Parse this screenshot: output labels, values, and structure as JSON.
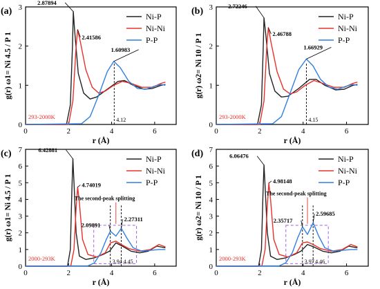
{
  "chart_data": [
    {
      "type": "line",
      "panel_label": "(a)",
      "ylabel": "g(r) ω1= Ni 4.5 / P 1",
      "xlabel": "r (Å)",
      "xlim": [
        0,
        7
      ],
      "ylim": [
        0,
        3
      ],
      "xticks": [
        "0",
        "2",
        "4",
        "6"
      ],
      "xtick_values": [
        0,
        2,
        4,
        6
      ],
      "yticks": [
        "0",
        "1",
        "2",
        "3"
      ],
      "ytick_values": [
        0,
        1,
        2,
        3
      ],
      "legend": "top-right",
      "temp_label": "293-2000K",
      "series": [
        {
          "name": "Ni-P",
          "color": "#222222",
          "points": [
            [
              0,
              0
            ],
            [
              1.9,
              0
            ],
            [
              2.08,
              0.5
            ],
            [
              2.18,
              2.0
            ],
            [
              2.22,
              2.88
            ],
            [
              2.28,
              2.4
            ],
            [
              2.45,
              1.3
            ],
            [
              2.7,
              0.8
            ],
            [
              3.0,
              0.65
            ],
            [
              3.3,
              0.7
            ],
            [
              3.8,
              0.9
            ],
            [
              4.3,
              1.1
            ],
            [
              4.6,
              1.12
            ],
            [
              5.0,
              1.0
            ],
            [
              5.5,
              0.9
            ],
            [
              5.9,
              0.92
            ],
            [
              6.3,
              1.0
            ],
            [
              6.5,
              1.02
            ]
          ]
        },
        {
          "name": "Ni-Ni",
          "color": "#e8302a",
          "points": [
            [
              0,
              0
            ],
            [
              2.0,
              0
            ],
            [
              2.2,
              0.6
            ],
            [
              2.35,
              2.0
            ],
            [
              2.42,
              2.42
            ],
            [
              2.55,
              2.1
            ],
            [
              2.8,
              1.4
            ],
            [
              3.1,
              0.95
            ],
            [
              3.4,
              0.8
            ],
            [
              3.7,
              0.85
            ],
            [
              4.1,
              1.0
            ],
            [
              4.5,
              1.1
            ],
            [
              4.9,
              1.05
            ],
            [
              5.4,
              0.95
            ],
            [
              5.9,
              0.95
            ],
            [
              6.3,
              1.05
            ],
            [
              6.5,
              1.08
            ]
          ]
        },
        {
          "name": "P-P",
          "color": "#2f7fe0",
          "points": [
            [
              0,
              0
            ],
            [
              2.6,
              0.02
            ],
            [
              3.0,
              0.2
            ],
            [
              3.4,
              0.75
            ],
            [
              3.8,
              1.35
            ],
            [
              4.1,
              1.61
            ],
            [
              4.4,
              1.45
            ],
            [
              4.8,
              1.1
            ],
            [
              5.2,
              0.92
            ],
            [
              5.6,
              0.9
            ],
            [
              6.0,
              0.98
            ],
            [
              6.3,
              1.02
            ],
            [
              6.5,
              1.0
            ]
          ]
        }
      ],
      "annotations": [
        {
          "text": "2.87894",
          "x": 2.22,
          "y": 2.88,
          "series": "Ni-P"
        },
        {
          "text": "2.41586",
          "x": 2.42,
          "y": 2.42,
          "series": "Ni-Ni"
        },
        {
          "text": "1.60983",
          "x": 4.1,
          "y": 1.61,
          "series": "P-P"
        }
      ],
      "markers": [
        {
          "x": 4.12,
          "label": "4.12"
        }
      ]
    },
    {
      "type": "line",
      "panel_label": "(b)",
      "ylabel": "g(r) ω2= Ni 10 / P 1",
      "xlabel": "r (Å)",
      "xlim": [
        0,
        7
      ],
      "ylim": [
        0,
        3
      ],
      "xticks": [
        "0",
        "2",
        "4",
        "6"
      ],
      "xtick_values": [
        0,
        2,
        4,
        6
      ],
      "yticks": [
        "0",
        "1",
        "2",
        "3"
      ],
      "ytick_values": [
        0,
        1,
        2,
        3
      ],
      "legend": "top-right",
      "temp_label": "293-2000K",
      "series": [
        {
          "name": "Ni-P",
          "color": "#222222",
          "points": [
            [
              0,
              0
            ],
            [
              1.9,
              0
            ],
            [
              2.08,
              0.5
            ],
            [
              2.16,
              1.9
            ],
            [
              2.2,
              2.72
            ],
            [
              2.28,
              2.3
            ],
            [
              2.45,
              1.3
            ],
            [
              2.7,
              0.85
            ],
            [
              3.0,
              0.7
            ],
            [
              3.3,
              0.72
            ],
            [
              3.8,
              0.92
            ],
            [
              4.3,
              1.15
            ],
            [
              4.6,
              1.15
            ],
            [
              5.0,
              1.0
            ],
            [
              5.5,
              0.88
            ],
            [
              5.9,
              0.9
            ],
            [
              6.3,
              1.0
            ],
            [
              6.5,
              1.02
            ]
          ]
        },
        {
          "name": "Ni-Ni",
          "color": "#e8302a",
          "points": [
            [
              0,
              0
            ],
            [
              2.0,
              0
            ],
            [
              2.2,
              0.6
            ],
            [
              2.33,
              2.0
            ],
            [
              2.4,
              2.47
            ],
            [
              2.52,
              2.1
            ],
            [
              2.8,
              1.35
            ],
            [
              3.1,
              0.9
            ],
            [
              3.4,
              0.78
            ],
            [
              3.7,
              0.83
            ],
            [
              4.1,
              1.0
            ],
            [
              4.5,
              1.12
            ],
            [
              4.9,
              1.05
            ],
            [
              5.4,
              0.95
            ],
            [
              5.9,
              0.95
            ],
            [
              6.3,
              1.05
            ],
            [
              6.5,
              1.08
            ]
          ]
        },
        {
          "name": "P-P",
          "color": "#2f7fe0",
          "points": [
            [
              0,
              0
            ],
            [
              2.6,
              0.02
            ],
            [
              3.0,
              0.2
            ],
            [
              3.4,
              0.8
            ],
            [
              3.8,
              1.4
            ],
            [
              4.15,
              1.67
            ],
            [
              4.45,
              1.5
            ],
            [
              4.8,
              1.15
            ],
            [
              5.2,
              0.95
            ],
            [
              5.6,
              0.9
            ],
            [
              6.0,
              0.98
            ],
            [
              6.3,
              1.02
            ],
            [
              6.5,
              1.0
            ]
          ]
        }
      ],
      "annotations": [
        {
          "text": "2.72246",
          "x": 2.2,
          "y": 2.72,
          "series": "Ni-P"
        },
        {
          "text": "2.46788",
          "x": 2.4,
          "y": 2.47,
          "series": "Ni-Ni"
        },
        {
          "text": "1.66929",
          "x": 4.15,
          "y": 1.67,
          "series": "P-P"
        }
      ],
      "markers": [
        {
          "x": 4.15,
          "label": "4.15"
        }
      ]
    },
    {
      "type": "line",
      "panel_label": "(c)",
      "ylabel": "g(r) ω1= Ni 4.5 / P 1",
      "xlabel": "r (Å)",
      "xlim": [
        0,
        7
      ],
      "ylim": [
        0,
        7
      ],
      "xticks": [
        "0",
        "2",
        "4",
        "6"
      ],
      "xtick_values": [
        0,
        2,
        4,
        6
      ],
      "yticks": [
        "0",
        "1",
        "2",
        "3",
        "4",
        "5",
        "6",
        "7"
      ],
      "ytick_values": [
        0,
        1,
        2,
        3,
        4,
        5,
        6,
        7
      ],
      "legend": "top-right",
      "temp_label": "2000-293K",
      "series": [
        {
          "name": "Ni-P",
          "color": "#222222",
          "points": [
            [
              0,
              0
            ],
            [
              1.95,
              0
            ],
            [
              2.08,
              1.0
            ],
            [
              2.15,
              4.5
            ],
            [
              2.2,
              6.43
            ],
            [
              2.25,
              5.0
            ],
            [
              2.35,
              2.0
            ],
            [
              2.5,
              0.6
            ],
            [
              2.8,
              0.4
            ],
            [
              3.2,
              0.5
            ],
            [
              3.6,
              0.7
            ],
            [
              3.9,
              0.9
            ],
            [
              4.2,
              1.4
            ],
            [
              4.5,
              1.2
            ],
            [
              4.9,
              0.9
            ],
            [
              5.3,
              0.8
            ],
            [
              5.7,
              0.9
            ],
            [
              6.1,
              1.2
            ],
            [
              6.5,
              1.1
            ]
          ]
        },
        {
          "name": "Ni-Ni",
          "color": "#e8302a",
          "points": [
            [
              0,
              0
            ],
            [
              2.1,
              0
            ],
            [
              2.25,
              1.0
            ],
            [
              2.35,
              3.5
            ],
            [
              2.42,
              4.74
            ],
            [
              2.5,
              3.8
            ],
            [
              2.65,
              1.6
            ],
            [
              2.9,
              0.7
            ],
            [
              3.3,
              0.55
            ],
            [
              3.7,
              0.8
            ],
            [
              3.95,
              1.4
            ],
            [
              4.2,
              1.5
            ],
            [
              4.45,
              1.3
            ],
            [
              4.8,
              1.05
            ],
            [
              5.3,
              0.9
            ],
            [
              5.8,
              1.0
            ],
            [
              6.2,
              1.3
            ],
            [
              6.5,
              1.15
            ]
          ]
        },
        {
          "name": "P-P",
          "color": "#2f7fe0",
          "points": [
            [
              0,
              0
            ],
            [
              2.9,
              0.02
            ],
            [
              3.2,
              0.2
            ],
            [
              3.5,
              0.8
            ],
            [
              3.75,
              1.6
            ],
            [
              3.94,
              2.1
            ],
            [
              4.2,
              1.8
            ],
            [
              4.45,
              2.27
            ],
            [
              4.7,
              1.7
            ],
            [
              5.0,
              1.1
            ],
            [
              5.4,
              0.9
            ],
            [
              5.8,
              0.95
            ],
            [
              6.2,
              1.0
            ],
            [
              6.5,
              1.0
            ]
          ]
        }
      ],
      "annotations": [
        {
          "text": "6.42881",
          "x": 2.2,
          "y": 6.43,
          "series": "Ni-P"
        },
        {
          "text": "4.74019",
          "x": 2.42,
          "y": 4.74,
          "series": "Ni-Ni"
        },
        {
          "text": "2.09891",
          "x": 3.94,
          "y": 2.1,
          "series": "P-P"
        },
        {
          "text": "2.27311",
          "x": 4.45,
          "y": 2.27,
          "series": "P-P"
        },
        {
          "text": "The second-peak splitting",
          "x": 4.2,
          "y": 3.2
        }
      ],
      "markers": [
        {
          "x": 3.94,
          "label": "3.94"
        },
        {
          "x": 4.45,
          "label": "4.45"
        }
      ]
    },
    {
      "type": "line",
      "panel_label": "(d)",
      "ylabel": "g(r) ω2= Ni 10 / P 1",
      "xlabel": "r (Å)",
      "xlim": [
        0,
        7
      ],
      "ylim": [
        0,
        7
      ],
      "xticks": [
        "0",
        "2",
        "4",
        "6"
      ],
      "xtick_values": [
        0,
        2,
        4,
        6
      ],
      "yticks": [
        "0",
        "1",
        "2",
        "3",
        "4",
        "5",
        "6",
        "7"
      ],
      "ytick_values": [
        0,
        1,
        2,
        3,
        4,
        5,
        6,
        7
      ],
      "legend": "top-right",
      "temp_label": "2000-293K",
      "series": [
        {
          "name": "Ni-P",
          "color": "#222222",
          "points": [
            [
              0,
              0
            ],
            [
              1.95,
              0
            ],
            [
              2.08,
              1.0
            ],
            [
              2.15,
              4.3
            ],
            [
              2.2,
              6.06
            ],
            [
              2.25,
              4.8
            ],
            [
              2.35,
              2.0
            ],
            [
              2.5,
              0.6
            ],
            [
              2.8,
              0.4
            ],
            [
              3.2,
              0.5
            ],
            [
              3.6,
              0.7
            ],
            [
              3.9,
              0.9
            ],
            [
              4.2,
              1.3
            ],
            [
              4.5,
              1.15
            ],
            [
              4.9,
              0.9
            ],
            [
              5.3,
              0.8
            ],
            [
              5.7,
              0.9
            ],
            [
              6.1,
              1.2
            ],
            [
              6.5,
              1.1
            ]
          ]
        },
        {
          "name": "Ni-Ni",
          "color": "#e8302a",
          "points": [
            [
              0,
              0
            ],
            [
              2.1,
              0
            ],
            [
              2.25,
              1.0
            ],
            [
              2.35,
              3.6
            ],
            [
              2.42,
              4.98
            ],
            [
              2.5,
              4.0
            ],
            [
              2.65,
              1.6
            ],
            [
              2.9,
              0.7
            ],
            [
              3.3,
              0.55
            ],
            [
              3.7,
              0.8
            ],
            [
              3.97,
              1.4
            ],
            [
              4.2,
              1.45
            ],
            [
              4.46,
              1.3
            ],
            [
              4.8,
              1.05
            ],
            [
              5.3,
              0.9
            ],
            [
              5.8,
              1.0
            ],
            [
              6.2,
              1.3
            ],
            [
              6.5,
              1.15
            ]
          ]
        },
        {
          "name": "P-P",
          "color": "#2f7fe0",
          "points": [
            [
              0,
              0
            ],
            [
              2.9,
              0.02
            ],
            [
              3.2,
              0.2
            ],
            [
              3.5,
              0.8
            ],
            [
              3.75,
              1.7
            ],
            [
              3.97,
              2.36
            ],
            [
              4.2,
              1.9
            ],
            [
              4.46,
              2.6
            ],
            [
              4.72,
              1.8
            ],
            [
              5.0,
              1.1
            ],
            [
              5.4,
              0.9
            ],
            [
              5.8,
              0.95
            ],
            [
              6.2,
              1.0
            ],
            [
              6.5,
              1.0
            ]
          ]
        }
      ],
      "annotations": [
        {
          "text": "6.06476",
          "x": 2.2,
          "y": 6.06,
          "series": "Ni-P"
        },
        {
          "text": "4.98148",
          "x": 2.42,
          "y": 4.98,
          "series": "Ni-Ni"
        },
        {
          "text": "2.35717",
          "x": 3.97,
          "y": 2.36,
          "series": "P-P"
        },
        {
          "text": "2.59685",
          "x": 4.46,
          "y": 2.6,
          "series": "P-P"
        },
        {
          "text": "The second-peak splitting",
          "x": 4.2,
          "y": 3.5
        }
      ],
      "markers": [
        {
          "x": 3.97,
          "label": "3.97"
        },
        {
          "x": 4.46,
          "label": "4.46"
        }
      ]
    }
  ]
}
